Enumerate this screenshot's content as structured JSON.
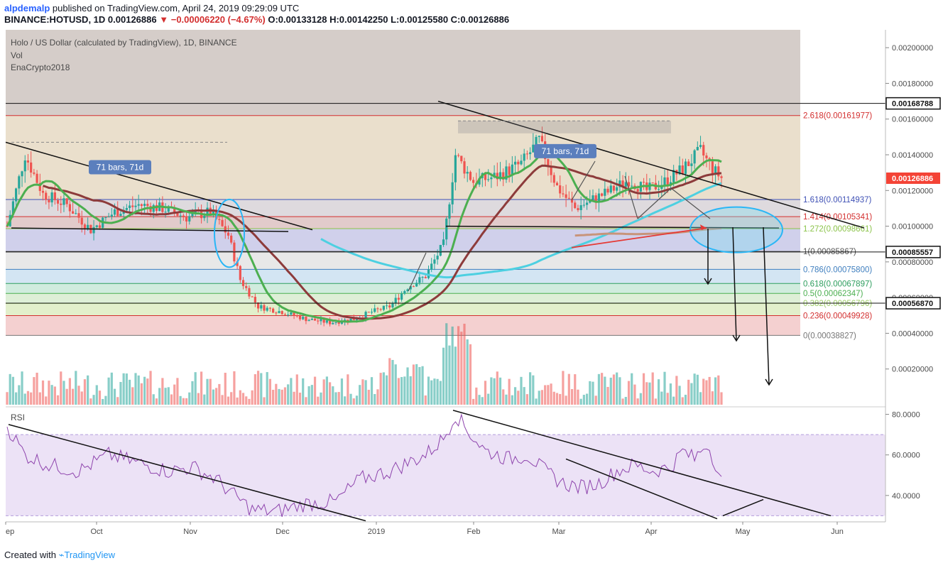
{
  "header": {
    "publisher": "alpdemalp",
    "published_text": " published on TradingView.com, April 24, 2019 09:29:09 UTC",
    "symbol": "BINANCE:HOTUSD, 1D",
    "price": "0.00126886",
    "arrow": "▼",
    "change": "−0.00006220 (−4.67%)",
    "ohlc": "O:0.00133128 H:0.00142250 L:0.00125580 C:0.00126886"
  },
  "legend": {
    "title": "Holo / US Dollar (calculated by TradingView), 1D, BINANCE",
    "vol": "Vol",
    "indicator": "EnaCrypto2018"
  },
  "footer": {
    "created_with": "Created with",
    "brand": "TradingView"
  },
  "colors": {
    "up": "#26a69a",
    "down": "#ef5350",
    "rsi": "#8e44ad",
    "ma_green": "#4caf50",
    "ma_brown": "#8d3b3b",
    "ma_cyan": "#4dd0e1"
  },
  "chart_data": [
    {
      "type": "candlestick",
      "title": "Holo / US Dollar (calculated by TradingView), 1D, BINANCE",
      "x_ticks": [
        "ep",
        "Oct",
        "Nov",
        "Dec",
        "2019",
        "Feb",
        "Mar",
        "Apr",
        "May",
        "Jun"
      ],
      "y_ticks": [
        "0.00020000",
        "0.00040000",
        "0.00060000",
        "0.00080000",
        "0.00100000",
        "0.00120000",
        "0.00140000",
        "0.00160000",
        "0.00180000",
        "0.00200000"
      ],
      "ylim": [
        0,
        0.0021
      ],
      "price_labels": [
        {
          "value": 0.00168788,
          "text": "0.00168788",
          "style": "black"
        },
        {
          "value": 0.00126886,
          "text": "0.00126886",
          "style": "red"
        },
        {
          "value": 0.00085557,
          "text": "0.00085557",
          "style": "black"
        },
        {
          "value": 0.0005687,
          "text": "0.00056870",
          "style": "black"
        }
      ],
      "fib_levels": [
        {
          "label": "2.618(0.00161977)",
          "value": 0.00161977,
          "color": "#d32f2f"
        },
        {
          "label": "1.618(0.00114937)",
          "value": 0.00114937,
          "color": "#3f51b5"
        },
        {
          "label": "1.414(0.00105341)",
          "value": 0.00105341,
          "color": "#d32f2f"
        },
        {
          "label": "1.272(0.00098661)",
          "value": 0.00098661,
          "color": "#8bc34a"
        },
        {
          "label": "1(0.00085867)",
          "value": 0.00085867,
          "color": "#555555"
        },
        {
          "label": "0.786(0.00075800)",
          "value": 0.000758,
          "color": "#3f7fbf"
        },
        {
          "label": "0.618(0.00067897)",
          "value": 0.00067897,
          "color": "#2e9e5e"
        },
        {
          "label": "0.5(0.00062347)",
          "value": 0.00062347,
          "color": "#4caf50"
        },
        {
          "label": "0.382(0.00056796)",
          "value": 0.00056796,
          "color": "#9ccc65"
        },
        {
          "label": "0.236(0.00049928)",
          "value": 0.00049928,
          "color": "#d32f2f"
        },
        {
          "label": "0(0.00038827)",
          "value": 0.00038827,
          "color": "#777777"
        }
      ],
      "annotations": [
        "71 bars, 71d",
        "71 bars, 71d"
      ],
      "last_price": 0.00126886
    },
    {
      "type": "line",
      "title": "RSI",
      "y_ticks": [
        "40.0000",
        "60.0000",
        "80.0000"
      ],
      "ylim": [
        27,
        83
      ],
      "band": [
        30,
        70
      ]
    }
  ]
}
